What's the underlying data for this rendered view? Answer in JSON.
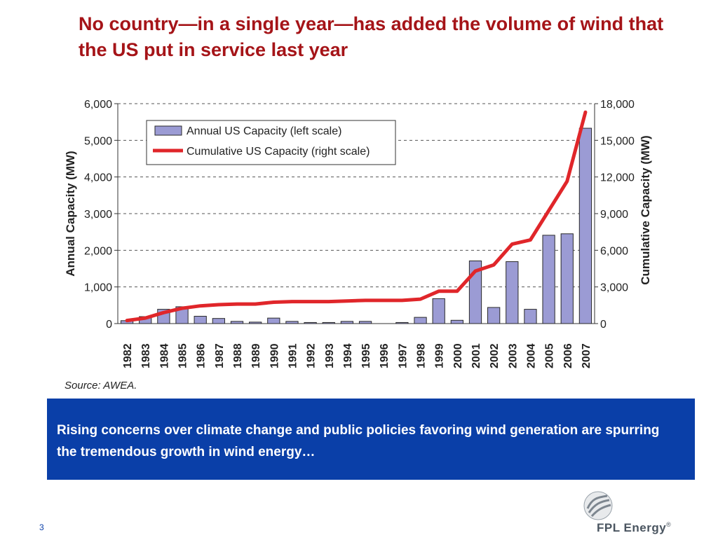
{
  "slide": {
    "title": "No country—in a single year—has added the volume of wind that the US put in service last year",
    "callout": "Rising concerns over climate change and public policies favoring wind generation are spurring the tremendous growth in wind energy…",
    "page_number": "3",
    "logo": {
      "name": "FPL Energy",
      "mark": "®",
      "icon": "fpl-energy-logo-icon"
    }
  },
  "colors": {
    "title": "#a51418",
    "bar": "#9b9bd4",
    "line": "#e0262a",
    "banner": "#0a3fa8"
  },
  "chart_data": {
    "type": "bar",
    "categories": [
      "1982",
      "1983",
      "1984",
      "1985",
      "1986",
      "1987",
      "1988",
      "1989",
      "1990",
      "1991",
      "1992",
      "1993",
      "1994",
      "1995",
      "1996",
      "1997",
      "1998",
      "1999",
      "2000",
      "2001",
      "2002",
      "2003",
      "2004",
      "2005",
      "2006",
      "2007"
    ],
    "series": [
      {
        "name": "Annual US Capacity (left scale)",
        "type": "bar",
        "axis": "left",
        "values": [
          80,
          190,
          390,
          460,
          200,
          140,
          60,
          40,
          150,
          60,
          30,
          30,
          60,
          60,
          0,
          30,
          170,
          680,
          90,
          1710,
          440,
          1690,
          390,
          2410,
          2450,
          5330
        ]
      },
      {
        "name": "Cumulative US Capacity (right scale)",
        "type": "line",
        "axis": "right",
        "values": [
          250,
          450,
          900,
          1250,
          1450,
          1550,
          1600,
          1600,
          1750,
          1800,
          1800,
          1800,
          1850,
          1900,
          1900,
          1900,
          2000,
          2650,
          2650,
          4300,
          4800,
          6500,
          6850,
          9250,
          11650,
          17300
        ]
      }
    ],
    "ylabel": "Annual Capacity (MW)",
    "y2label": "Cumulative Capacity (MW)",
    "ylim": [
      0,
      6000
    ],
    "y2lim": [
      0,
      18000
    ],
    "yticks": [
      "0",
      "1,000",
      "2,000",
      "3,000",
      "4,000",
      "5,000",
      "6,000"
    ],
    "y2ticks": [
      "0",
      "3,000",
      "6,000",
      "9,000",
      "12,000",
      "15,000",
      "18,000"
    ],
    "grid": true,
    "legend": "top-left",
    "source": "Source:  AWEA."
  }
}
